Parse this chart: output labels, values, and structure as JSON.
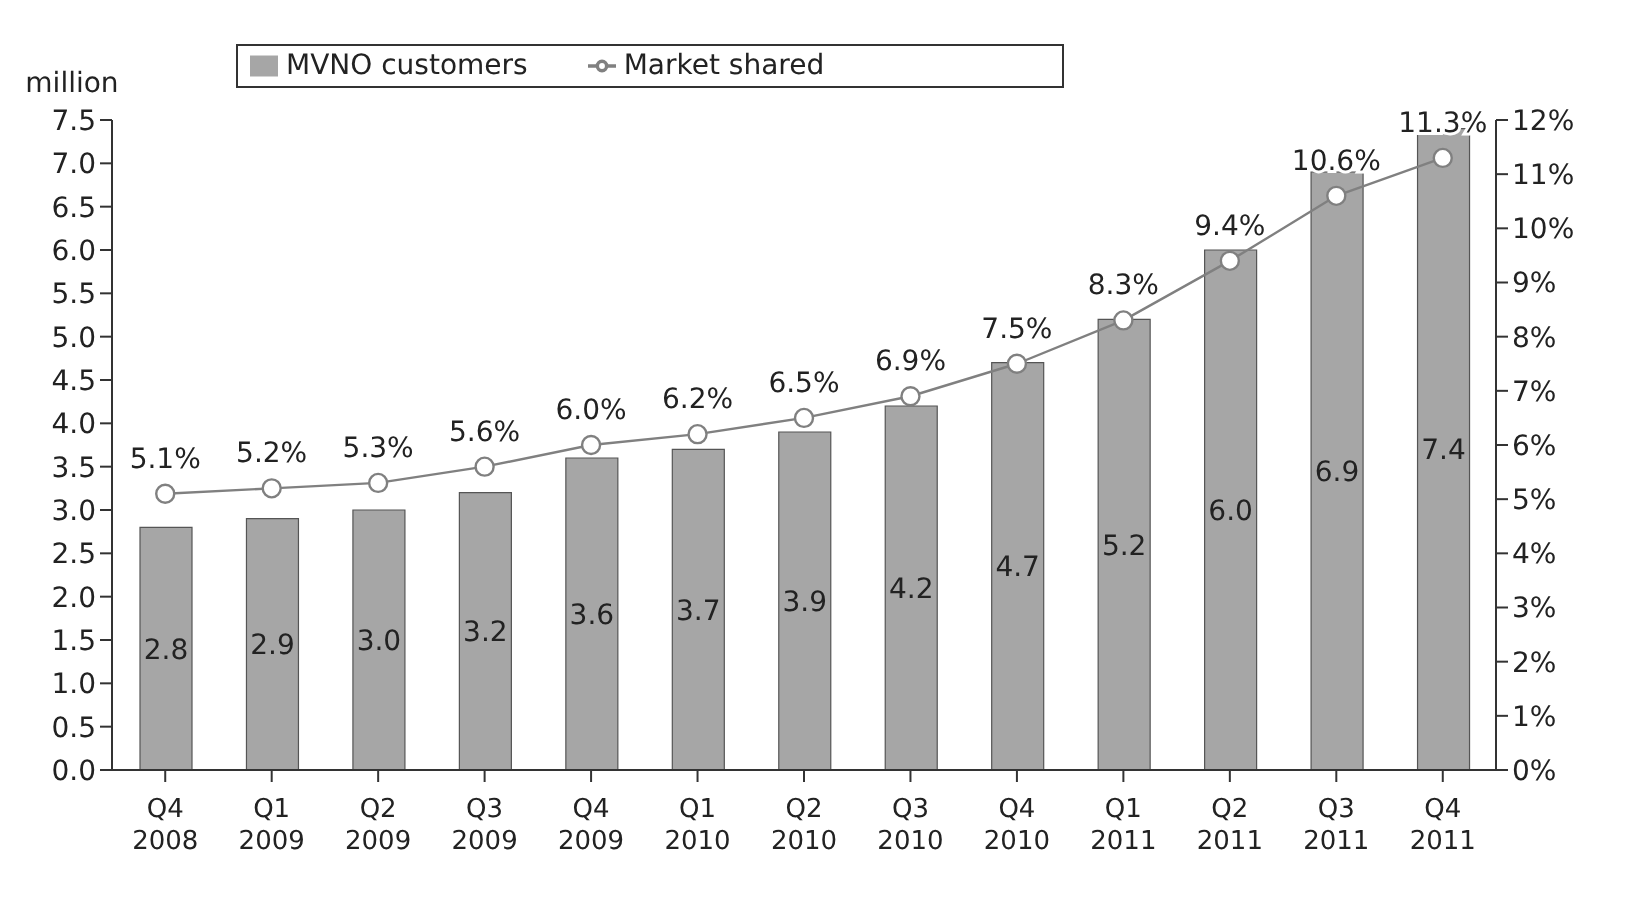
{
  "chart_data": {
    "type": "bar",
    "ylabel": "million",
    "categories": [
      "Q4 2008",
      "Q1 2009",
      "Q2 2009",
      "Q3 2009",
      "Q4 2009",
      "Q1 2010",
      "Q2 2010",
      "Q3 2010",
      "Q4 2010",
      "Q1 2011",
      "Q2 2011",
      "Q3 2011",
      "Q4 2011"
    ],
    "series": [
      {
        "name": "MVNO customers",
        "color": "#a6a6a6",
        "values": [
          2.8,
          2.9,
          3.0,
          3.2,
          3.6,
          3.7,
          3.9,
          4.2,
          4.7,
          5.2,
          6.0,
          6.9,
          7.4
        ],
        "value_labels": [
          "2.8",
          "2.9",
          "3.0",
          "3.2",
          "3.6",
          "3.7",
          "3.9",
          "4.2",
          "4.7",
          "5.2",
          "6.0",
          "6.9",
          "7.4"
        ]
      },
      {
        "name": "Market shared",
        "type": "line",
        "axis": "y2",
        "color": "#808080",
        "marker": "circle",
        "values": [
          5.1,
          5.2,
          5.3,
          5.6,
          6.0,
          6.2,
          6.5,
          6.9,
          7.5,
          8.3,
          9.4,
          10.6,
          11.3
        ],
        "value_labels": [
          "5.1%",
          "5.2%",
          "5.3%",
          "5.6%",
          "6.0%",
          "6.2%",
          "6.5%",
          "6.9%",
          "7.5%",
          "8.3%",
          "9.4%",
          "10.6%",
          "11.3%"
        ]
      }
    ],
    "ylim": [
      0,
      7.5
    ],
    "yticks": [
      {
        "value": 0,
        "label": "0.0"
      },
      0.5,
      {
        "value": 1,
        "label": "1.0"
      },
      1.5,
      {
        "value": 2,
        "label": "2.0"
      },
      2.5,
      {
        "value": 3,
        "label": "3.0"
      },
      3.5,
      {
        "value": 4,
        "label": "4.0"
      },
      4.5,
      {
        "value": 5,
        "label": "5.0"
      },
      5.5,
      {
        "value": 6,
        "label": "6.0"
      },
      6.5,
      {
        "value": 7,
        "label": "7.0"
      },
      7.5
    ],
    "y2lim": [
      0,
      12
    ],
    "y2ticks": [
      {
        "value": 0,
        "label": "0%"
      },
      {
        "value": 1,
        "label": "1%"
      },
      {
        "value": 2,
        "label": "2%"
      },
      {
        "value": 3,
        "label": "3%"
      },
      {
        "value": 4,
        "label": "4%"
      },
      {
        "value": 5,
        "label": "5%"
      },
      {
        "value": 6,
        "label": "6%"
      },
      {
        "value": 7,
        "label": "7%"
      },
      {
        "value": 8,
        "label": "8%"
      },
      {
        "value": 9,
        "label": "9%"
      },
      {
        "value": 10,
        "label": "10%"
      },
      {
        "value": 11,
        "label": "11%"
      },
      {
        "value": 12,
        "label": "12%"
      }
    ],
    "legend": "top left"
  }
}
